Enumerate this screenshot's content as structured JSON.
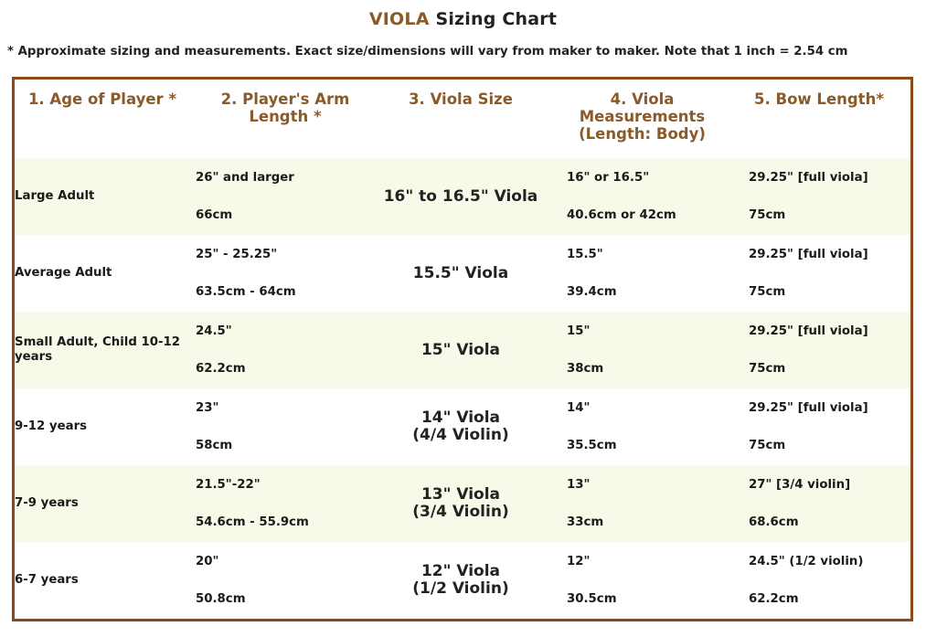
{
  "title": {
    "accent": "VIOLA",
    "rest": "Sizing Chart"
  },
  "note": "* Approximate sizing and measurements. Exact size/dimensions will vary from maker to maker. Note that 1 inch = 2.54 cm",
  "colors": {
    "accent": "#8a5a2b",
    "border": "#8a4a1c",
    "row_shade": "#f9f9ea"
  },
  "table": {
    "headers": [
      "1. Age of Player *",
      "2. Player's Arm Length *",
      "3. Viola Size",
      "4. Viola Measurements (Length: Body)",
      "5. Bow Length*"
    ],
    "rows": [
      {
        "age": "Large Adult",
        "arm_in": "26\" and larger",
        "arm_cm": "66cm",
        "size_line1": "16\" to 16.5\" Viola",
        "size_line2": "",
        "meas_in": "16\" or 16.5\"",
        "meas_cm": "40.6cm or 42cm",
        "bow_in": "29.25\" [full viola]",
        "bow_cm": "75cm"
      },
      {
        "age": "Average Adult",
        "arm_in": "25\" - 25.25\"",
        "arm_cm": "63.5cm - 64cm",
        "size_line1": "15.5\" Viola",
        "size_line2": "",
        "meas_in": "15.5\"",
        "meas_cm": "39.4cm",
        "bow_in": "29.25\" [full viola]",
        "bow_cm": "75cm"
      },
      {
        "age": "Small Adult, Child 10-12 years",
        "arm_in": "24.5\"",
        "arm_cm": "62.2cm",
        "size_line1": "15\" Viola",
        "size_line2": "",
        "meas_in": "15\"",
        "meas_cm": "38cm",
        "bow_in": "29.25\" [full viola]",
        "bow_cm": "75cm"
      },
      {
        "age": "9-12 years",
        "arm_in": "23\"",
        "arm_cm": "58cm",
        "size_line1": "14\" Viola",
        "size_line2": "(4/4 Violin)",
        "meas_in": "14\"",
        "meas_cm": "35.5cm",
        "bow_in": "29.25\" [full viola]",
        "bow_cm": "75cm"
      },
      {
        "age": "7-9 years",
        "arm_in": "21.5\"-22\"",
        "arm_cm": "54.6cm - 55.9cm",
        "size_line1": "13\" Viola",
        "size_line2": "(3/4 Violin)",
        "meas_in": "13\"",
        "meas_cm": "33cm",
        "bow_in": "27\" [3/4 violin]",
        "bow_cm": "68.6cm"
      },
      {
        "age": "6-7 years",
        "arm_in": "20\"",
        "arm_cm": "50.8cm",
        "size_line1": "12\" Viola",
        "size_line2": "(1/2 Violin)",
        "meas_in": "12\"",
        "meas_cm": "30.5cm",
        "bow_in": "24.5\" (1/2 violin)",
        "bow_cm": "62.2cm"
      }
    ]
  }
}
